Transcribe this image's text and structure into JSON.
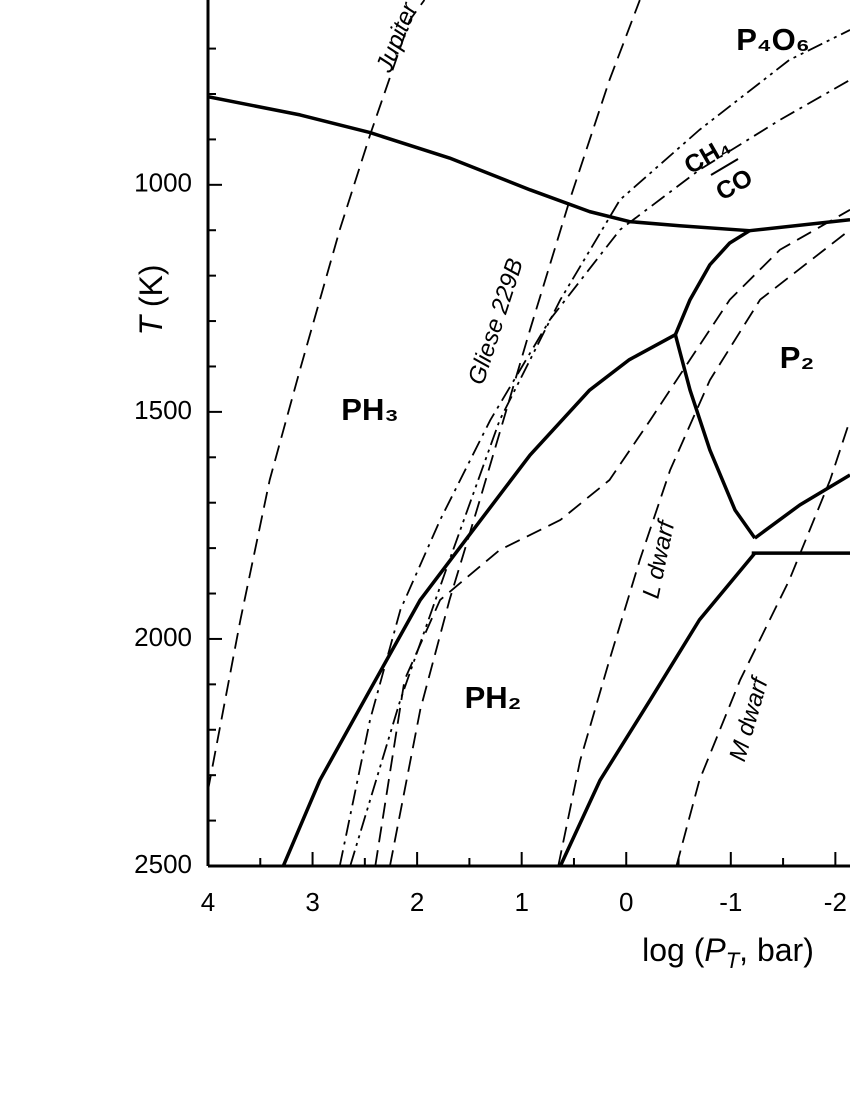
{
  "chart_data": {
    "type": "line",
    "x_label_parts": [
      "log (",
      "P",
      "T",
      ", bar)"
    ],
    "y_label_parts": [
      "T",
      " (K)"
    ],
    "xlim": [
      4,
      -2.14
    ],
    "ylim": [
      593,
      2500
    ],
    "xticks": [
      4,
      3,
      2,
      1,
      0,
      -1,
      -2
    ],
    "xticks_minor": [
      3.5,
      2.5,
      1.5,
      0.5,
      -0.5,
      -1.5
    ],
    "yticks": [
      1000,
      1500,
      2000,
      2500
    ],
    "yticks_minor": [
      700,
      800,
      900,
      1100,
      1200,
      1300,
      1400,
      1600,
      1700,
      1800,
      1900,
      2100,
      2200,
      2300,
      2400
    ],
    "color": "#000000",
    "series": [
      {
        "style": "solid",
        "x": [
          4,
          3.12,
          2.45,
          1.69,
          0.92,
          0.35,
          -0.03,
          -0.51,
          -1.18,
          -2.14
        ],
        "values": [
          806,
          846,
          885,
          941,
          1011,
          1059,
          1081,
          1090,
          1101,
          1077
        ]
      },
      {
        "style": "solid",
        "x": [
          3.28,
          2.93,
          2.45,
          1.97,
          1.5,
          0.92,
          0.35,
          -0.03,
          -0.47
        ],
        "values": [
          2500,
          2311,
          2112,
          1914,
          1771,
          1595,
          1452,
          1385,
          1330
        ]
      },
      {
        "style": "solid",
        "x": [
          -0.47,
          -0.61,
          -0.8,
          -0.99,
          -1.18
        ],
        "values": [
          1330,
          1253,
          1176,
          1128,
          1101
        ]
      },
      {
        "style": "solid",
        "x": [
          -0.47,
          -0.61,
          -0.8,
          -1.04,
          -1.23
        ],
        "values": [
          1330,
          1452,
          1584,
          1716,
          1778
        ]
      },
      {
        "style": "solid",
        "x": [
          -1.23,
          -1.66,
          -2.14
        ],
        "values": [
          1778,
          1705,
          1639
        ]
      },
      {
        "style": "solid",
        "x": [
          -1.2,
          -2.14
        ],
        "values": [
          1811,
          1811
        ]
      },
      {
        "style": "solid",
        "x": [
          0.63,
          0.25,
          -0.23,
          -0.7,
          -1.23
        ],
        "values": [
          2500,
          2311,
          2134,
          1958,
          1811
        ]
      },
      {
        "style": "dashed",
        "x": [
          4,
          3.69,
          3.41,
          3.12,
          2.74,
          2.45,
          2.07,
          1.93
        ],
        "values": [
          2333,
          1958,
          1650,
          1407,
          1099,
          890,
          637,
          593
        ]
      },
      {
        "style": "dashed",
        "x": [
          2.26,
          1.97,
          1.69,
          1.4,
          0.92,
          0.54,
          0.16,
          -0.13
        ],
        "values": [
          2500,
          2156,
          1914,
          1694,
          1319,
          1033,
          769,
          593
        ]
      },
      {
        "style": "dashed",
        "x": [
          2.4,
          2.12,
          1.78,
          1.21,
          0.63,
          0.16,
          -0.23,
          -0.61,
          -0.99,
          -1.47,
          -2.14
        ],
        "values": [
          2500,
          2090,
          1914,
          1804,
          1738,
          1650,
          1518,
          1385,
          1253,
          1143,
          1055
        ]
      },
      {
        "style": "dashed",
        "x": [
          0.65,
          0.44,
          0.16,
          -0.13,
          -0.42,
          -0.8,
          -1.28,
          -2.14
        ],
        "values": [
          2500,
          2267,
          2046,
          1826,
          1628,
          1430,
          1253,
          1099
        ]
      },
      {
        "style": "dashed",
        "x": [
          -0.48,
          -0.7,
          -1.09,
          -1.56,
          -1.95,
          -2.14
        ],
        "values": [
          2500,
          2311,
          2090,
          1870,
          1650,
          1518
        ]
      },
      {
        "style": "dashdot",
        "x": [
          2.74,
          2.45,
          2.16,
          1.78,
          1.3,
          0.73,
          0.06,
          -0.7,
          -1.47,
          -2.14
        ],
        "values": [
          2500,
          2178,
          1936,
          1738,
          1518,
          1297,
          1099,
          967,
          857,
          769
        ]
      },
      {
        "style": "dashdotdot",
        "x": [
          2.64,
          2.16,
          1.69,
          1.21,
          0.63,
          0.06,
          -0.7,
          -1.56,
          -2.14
        ],
        "values": [
          2500,
          2134,
          1826,
          1518,
          1253,
          1033,
          879,
          725,
          659
        ]
      }
    ],
    "annotations": [
      "PH₃",
      "PH₂",
      "P₂",
      "P₄O₆",
      "CH₄",
      "CO",
      "Jupiter",
      "Gliese 229B",
      "L dwarf",
      "M dwarf"
    ]
  }
}
